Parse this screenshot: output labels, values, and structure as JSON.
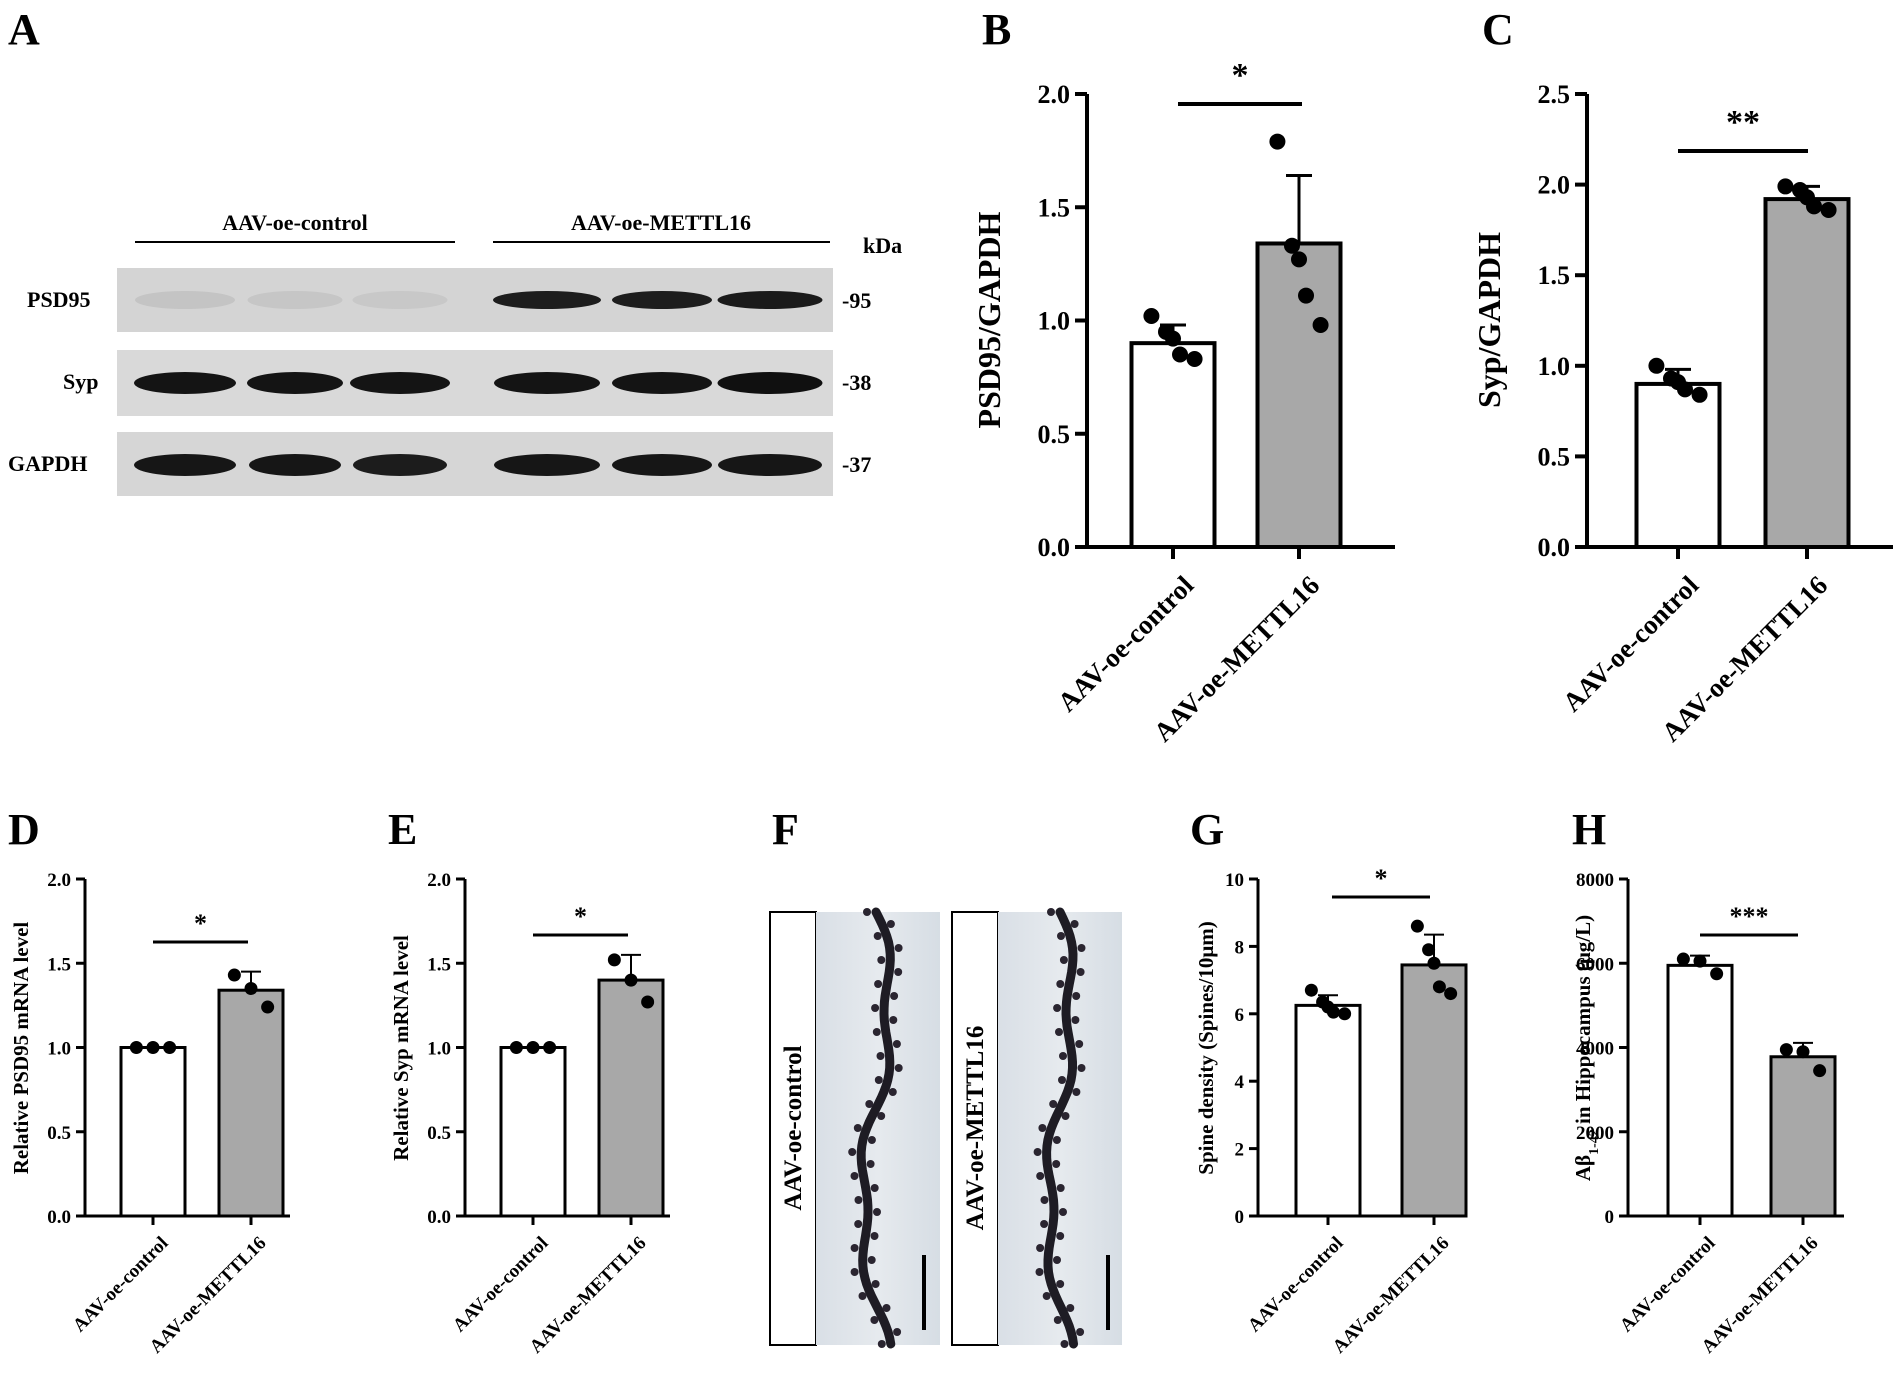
{
  "panels": {
    "A": {
      "letter": "A",
      "group_labels": [
        "AAV-oe-control",
        "AAV-oe-METTL16"
      ],
      "kda_label": "kDa",
      "rows": [
        {
          "protein": "PSD95",
          "kda": "-95"
        },
        {
          "protein": "Syp",
          "kda": "-38"
        },
        {
          "protein": "GAPDH",
          "kda": "-37"
        }
      ]
    },
    "F": {
      "letter": "F",
      "images": [
        "AAV-oe-control",
        "AAV-oe-METTL16"
      ]
    }
  },
  "chart_data": [
    {
      "panel": "B",
      "type": "bar",
      "categories": [
        "AAV-oe-control",
        "AAV-oe-METTL16"
      ],
      "values": [
        0.9,
        1.34
      ],
      "errors": [
        0.08,
        0.3
      ],
      "points": [
        [
          1.02,
          0.95,
          0.92,
          0.85,
          0.83
        ],
        [
          1.79,
          1.33,
          1.27,
          1.11,
          0.98
        ]
      ],
      "ylabel": "PSD95/GAPDH",
      "ylim": [
        0,
        2.0
      ],
      "yticks": [
        "0.0",
        "0.5",
        "1.0",
        "1.5",
        "2.0"
      ],
      "significance": "*",
      "bar_colors": [
        "#ffffff",
        "#a8a8a8"
      ]
    },
    {
      "panel": "C",
      "type": "bar",
      "categories": [
        "AAV-oe-control",
        "AAV-oe-METTL16"
      ],
      "values": [
        0.9,
        1.92
      ],
      "errors": [
        0.08,
        0.07
      ],
      "points": [
        [
          1.0,
          0.93,
          0.91,
          0.87,
          0.84
        ],
        [
          1.99,
          1.97,
          1.93,
          1.88,
          1.86
        ]
      ],
      "ylabel": "Syp/GAPDH",
      "ylim": [
        0,
        2.5
      ],
      "yticks": [
        "0.0",
        "0.5",
        "1.0",
        "1.5",
        "2.0",
        "2.5"
      ],
      "significance": "**",
      "bar_colors": [
        "#ffffff",
        "#a8a8a8"
      ]
    },
    {
      "panel": "D",
      "type": "bar",
      "categories": [
        "AAV-oe-control",
        "AAV-oe-METTL16"
      ],
      "values": [
        1.0,
        1.34
      ],
      "errors": [
        0.0,
        0.11
      ],
      "points": [
        [
          1.0,
          1.0,
          1.0
        ],
        [
          1.43,
          1.35,
          1.24
        ]
      ],
      "ylabel": "Relative PSD95 mRNA level",
      "ylim": [
        0,
        2.0
      ],
      "yticks": [
        "0.0",
        "0.5",
        "1.0",
        "1.5",
        "2.0"
      ],
      "significance": "*",
      "bar_colors": [
        "#ffffff",
        "#a8a8a8"
      ]
    },
    {
      "panel": "E",
      "type": "bar",
      "categories": [
        "AAV-oe-control",
        "AAV-oe-METTL16"
      ],
      "values": [
        1.0,
        1.4
      ],
      "errors": [
        0.0,
        0.15
      ],
      "points": [
        [
          1.0,
          1.0,
          1.0
        ],
        [
          1.52,
          1.4,
          1.27
        ]
      ],
      "ylabel": "Relative Syp mRNA level",
      "ylim": [
        0,
        2.0
      ],
      "yticks": [
        "0.0",
        "0.5",
        "1.0",
        "1.5",
        "2.0"
      ],
      "significance": "*",
      "bar_colors": [
        "#ffffff",
        "#a8a8a8"
      ]
    },
    {
      "panel": "G",
      "type": "bar",
      "categories": [
        "AAV-oe-control",
        "AAV-oe-METTL16"
      ],
      "values": [
        6.25,
        7.45
      ],
      "errors": [
        0.3,
        0.9
      ],
      "points": [
        [
          6.7,
          6.35,
          6.2,
          6.05,
          6.0
        ],
        [
          8.6,
          7.9,
          7.5,
          6.8,
          6.6
        ]
      ],
      "ylabel": "Spine density (Spines/10μm)",
      "ylim": [
        0,
        10
      ],
      "yticks": [
        "0",
        "2",
        "4",
        "6",
        "8",
        "10"
      ],
      "significance": "*",
      "bar_colors": [
        "#ffffff",
        "#a8a8a8"
      ]
    },
    {
      "panel": "H",
      "type": "bar",
      "categories": [
        "AAV-oe-control",
        "AAV-oe-METTL16"
      ],
      "values": [
        5950,
        3780
      ],
      "errors": [
        230,
        330
      ],
      "points": [
        [
          6100,
          6050,
          5750
        ],
        [
          3950,
          3900,
          3450
        ]
      ],
      "ylabel_parts": [
        "Aβ",
        "1-42",
        " in Hippocampus (μg/L)"
      ],
      "ylim": [
        0,
        8000
      ],
      "yticks": [
        "0",
        "2000",
        "4000",
        "6000",
        "8000"
      ],
      "significance": "***",
      "bar_colors": [
        "#ffffff",
        "#a8a8a8"
      ]
    }
  ]
}
